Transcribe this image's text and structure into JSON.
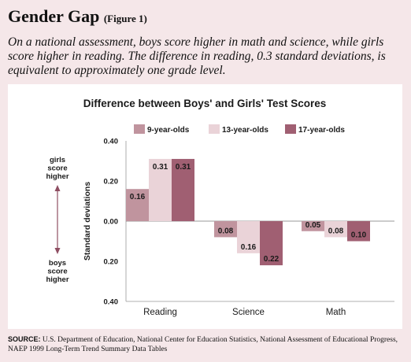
{
  "header": {
    "title": "Gender Gap",
    "figure_label": "(Figure 1)",
    "description": "On a national assessment, boys score higher in math and science, while girls score higher in reading. The difference in reading, 0.3 standard deviations, is equivalent to approximately one grade level."
  },
  "footer": {
    "source_label": "SOURCE:",
    "source_text": "U.S. Department of Education, National Center for Education Statistics, National Assessment of Educational Progress, NAEP 1999 Long-Term Trend Summary Data Tables"
  },
  "chart_data": {
    "type": "bar",
    "title": "Difference between Boys' and Girls' Test Scores",
    "ylabel": "Standard deviations",
    "categories": [
      "Reading",
      "Science",
      "Math"
    ],
    "ylim": [
      -0.4,
      0.4
    ],
    "yticks": [
      0.4,
      0.2,
      0.0,
      -0.2,
      -0.4
    ],
    "ytick_labels": [
      "0.40",
      "0.20",
      "0.00",
      "0.20",
      "0.40"
    ],
    "top_annotation": [
      "girls",
      "score",
      "higher"
    ],
    "bottom_annotation": [
      "boys",
      "score",
      "higher"
    ],
    "legend_position": "top",
    "series": [
      {
        "name": "9-year-olds",
        "color": "#c0949e",
        "values": [
          0.16,
          -0.08,
          -0.05
        ],
        "labels": [
          "0.16",
          "0.08",
          "0.05"
        ]
      },
      {
        "name": "13-year-olds",
        "color": "#ead3d8",
        "values": [
          0.31,
          -0.16,
          -0.08
        ],
        "labels": [
          "0.31",
          "0.16",
          "0.08"
        ]
      },
      {
        "name": "17-year-olds",
        "color": "#a05f72",
        "values": [
          0.31,
          -0.22,
          -0.1
        ],
        "labels": [
          "0.31",
          "0.22",
          "0.10"
        ]
      }
    ]
  }
}
